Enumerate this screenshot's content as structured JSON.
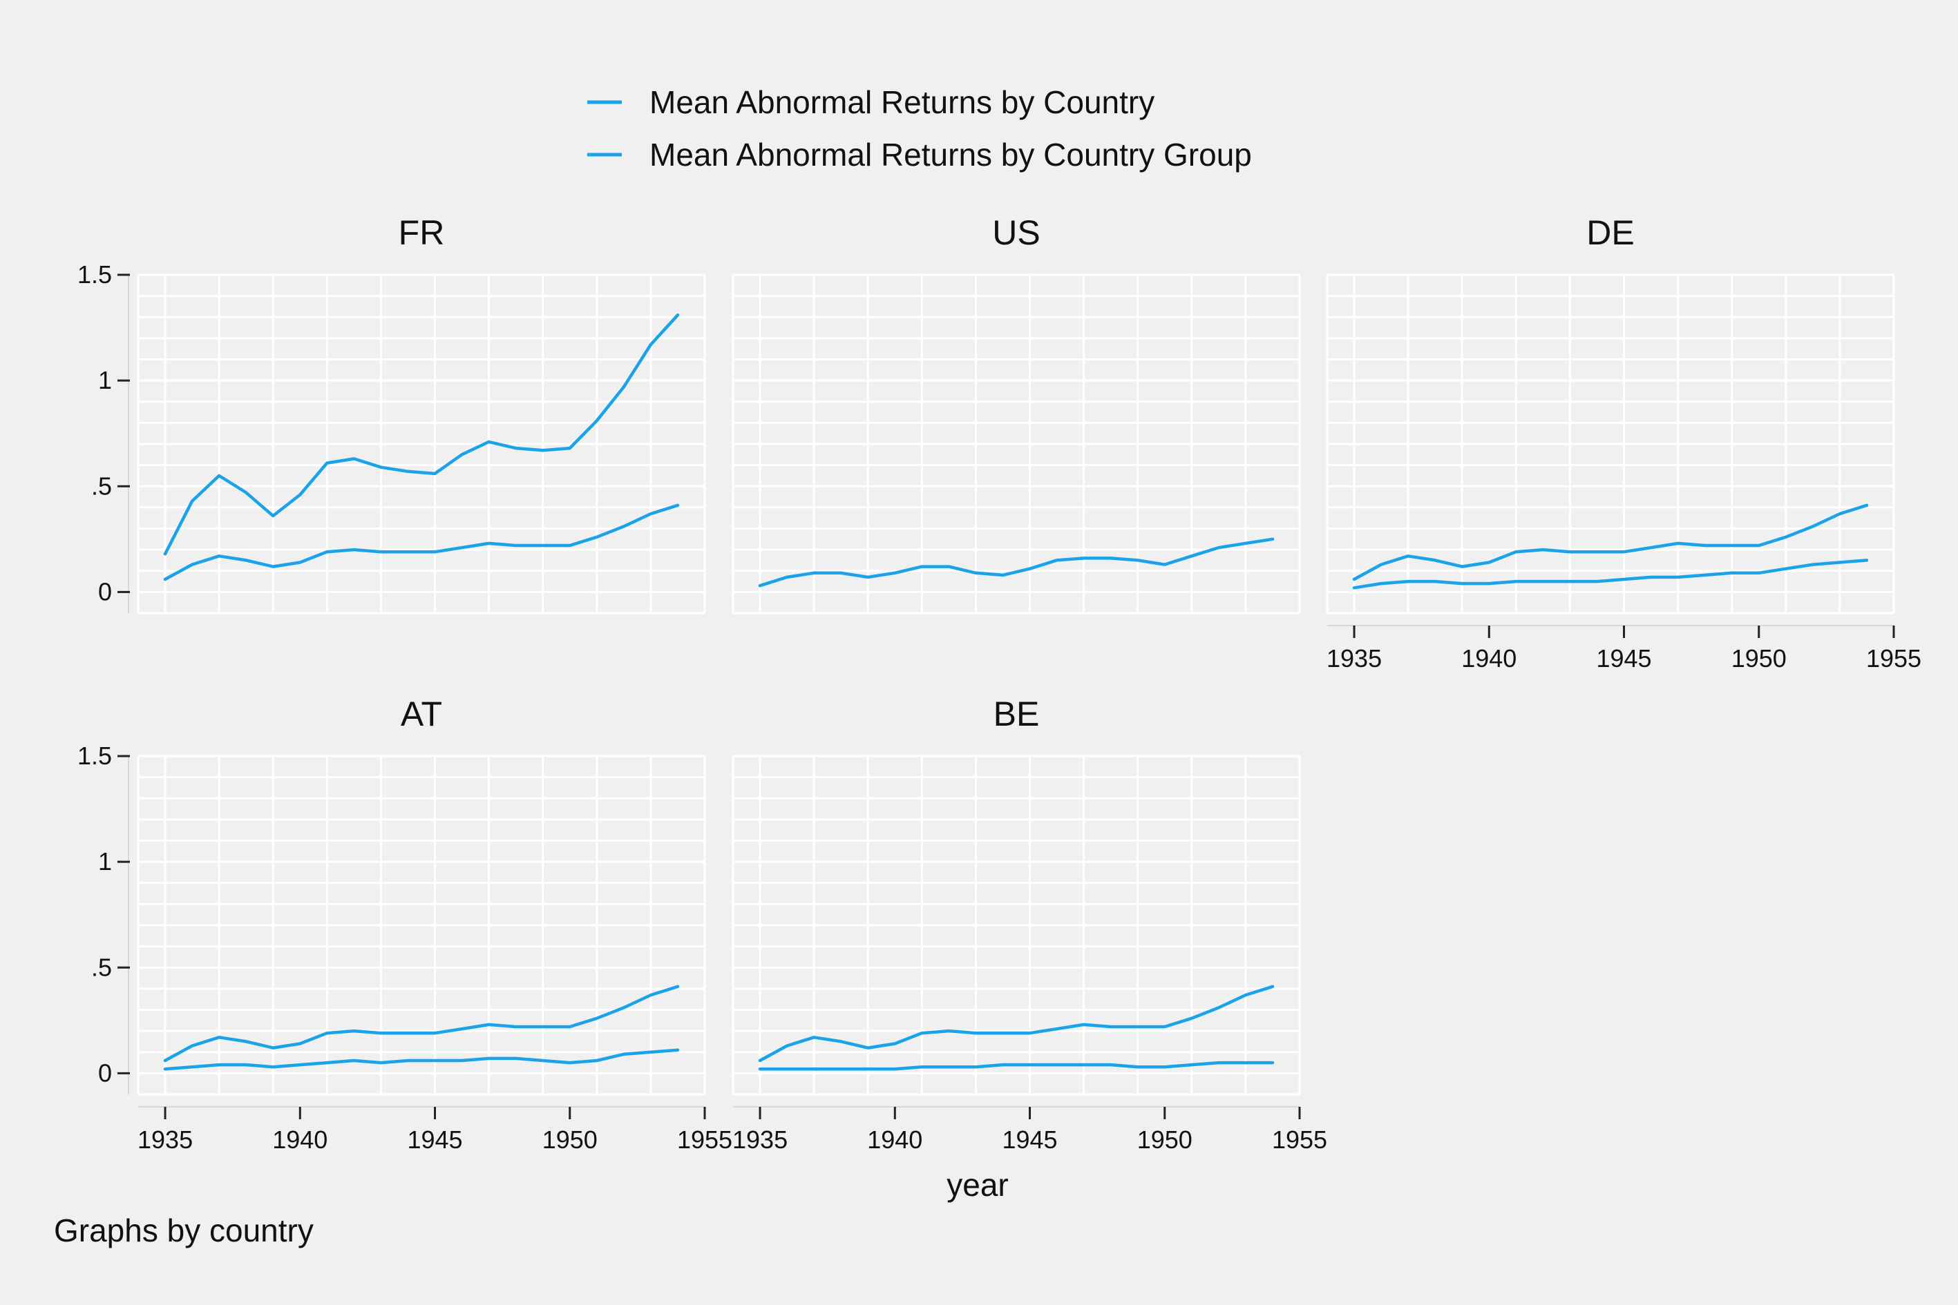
{
  "legend": [
    "Mean Abnormal Returns by Country",
    "Mean Abnormal Returns by Country Group"
  ],
  "x_axis_title": "year",
  "note": "Graphs by country",
  "colors": {
    "series": "#1aa3e8",
    "background": "#f0f0f0",
    "grid": "#ffffff"
  },
  "chart_data": {
    "type": "line",
    "layout": "small-multiples 2x3",
    "x": [
      1935,
      1936,
      1937,
      1938,
      1939,
      1940,
      1941,
      1942,
      1943,
      1944,
      1945,
      1946,
      1947,
      1948,
      1949,
      1950,
      1951,
      1952,
      1953,
      1954
    ],
    "xticks": [
      1935,
      1940,
      1945,
      1950,
      1955
    ],
    "yticks": [
      0,
      0.5,
      1,
      1.5
    ],
    "ytick_labels": [
      "0",
      ".5",
      "1",
      "1.5"
    ],
    "xlim": [
      1934,
      1955
    ],
    "ylim": [
      -0.1,
      1.5
    ],
    "grid": true,
    "legend_position": "top-center",
    "panels": [
      {
        "title": "FR",
        "series": [
          {
            "values": [
              0.18,
              0.43,
              0.55,
              0.47,
              0.36,
              0.46,
              0.61,
              0.63,
              0.59,
              0.57,
              0.56,
              0.65,
              0.71,
              0.68,
              0.67,
              0.68,
              0.81,
              0.97,
              1.17,
              1.31
            ]
          },
          {
            "values": [
              0.06,
              0.13,
              0.17,
              0.15,
              0.12,
              0.14,
              0.19,
              0.2,
              0.19,
              0.19,
              0.19,
              0.21,
              0.23,
              0.22,
              0.22,
              0.22,
              0.26,
              0.31,
              0.37,
              0.41
            ]
          }
        ]
      },
      {
        "title": "US",
        "series": [
          {
            "values": [
              0.03,
              0.07,
              0.09,
              0.09,
              0.07,
              0.09,
              0.12,
              0.12,
              0.09,
              0.08,
              0.11,
              0.15,
              0.16,
              0.16,
              0.15,
              0.13,
              0.17,
              0.21,
              0.23,
              0.25
            ]
          }
        ]
      },
      {
        "title": "DE",
        "series": [
          {
            "values": [
              0.06,
              0.13,
              0.17,
              0.15,
              0.12,
              0.14,
              0.19,
              0.2,
              0.19,
              0.19,
              0.19,
              0.21,
              0.23,
              0.22,
              0.22,
              0.22,
              0.26,
              0.31,
              0.37,
              0.41
            ]
          },
          {
            "values": [
              0.02,
              0.04,
              0.05,
              0.05,
              0.04,
              0.04,
              0.05,
              0.05,
              0.05,
              0.05,
              0.06,
              0.07,
              0.07,
              0.08,
              0.09,
              0.09,
              0.11,
              0.13,
              0.14,
              0.15
            ]
          }
        ]
      },
      {
        "title": "AT",
        "series": [
          {
            "values": [
              0.06,
              0.13,
              0.17,
              0.15,
              0.12,
              0.14,
              0.19,
              0.2,
              0.19,
              0.19,
              0.19,
              0.21,
              0.23,
              0.22,
              0.22,
              0.22,
              0.26,
              0.31,
              0.37,
              0.41
            ]
          },
          {
            "values": [
              0.02,
              0.03,
              0.04,
              0.04,
              0.03,
              0.04,
              0.05,
              0.06,
              0.05,
              0.06,
              0.06,
              0.06,
              0.07,
              0.07,
              0.06,
              0.05,
              0.06,
              0.09,
              0.1,
              0.11
            ]
          }
        ]
      },
      {
        "title": "BE",
        "series": [
          {
            "values": [
              0.06,
              0.13,
              0.17,
              0.15,
              0.12,
              0.14,
              0.19,
              0.2,
              0.19,
              0.19,
              0.19,
              0.21,
              0.23,
              0.22,
              0.22,
              0.22,
              0.26,
              0.31,
              0.37,
              0.41
            ]
          },
          {
            "values": [
              0.02,
              0.02,
              0.02,
              0.02,
              0.02,
              0.02,
              0.03,
              0.03,
              0.03,
              0.04,
              0.04,
              0.04,
              0.04,
              0.04,
              0.03,
              0.03,
              0.04,
              0.05,
              0.05,
              0.05
            ]
          }
        ]
      }
    ]
  }
}
